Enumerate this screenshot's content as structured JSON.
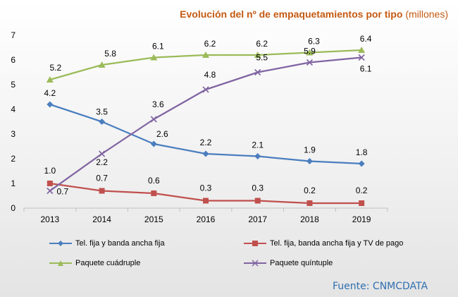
{
  "source_label": "Fuente: CNMCDATA",
  "chart_data": {
    "type": "line",
    "title": "Evolución del nº de empaquetamientos por tipo",
    "title_unit": "(millones)",
    "x": [
      "2013",
      "2014",
      "2015",
      "2016",
      "2017",
      "2018",
      "2019"
    ],
    "ylim": [
      0,
      7
    ],
    "yticks": [
      "0",
      "1",
      "2",
      "3",
      "4",
      "5",
      "6",
      "7"
    ],
    "grid": false,
    "legend_position": "bottom",
    "series": [
      {
        "name": "Tel. fija y banda ancha fija",
        "color": "#4a7ebf",
        "marker": "diamond",
        "values": [
          4.2,
          3.5,
          2.6,
          2.2,
          2.1,
          1.9,
          1.8
        ],
        "labels": [
          "4.2",
          "3.5",
          "2.6",
          "2.2",
          "2.1",
          "1.9",
          "1.8"
        ]
      },
      {
        "name": "Tel. fija, banda ancha fija y TV de pago",
        "color": "#c0504d",
        "marker": "square",
        "values": [
          1.0,
          0.7,
          0.6,
          0.3,
          0.3,
          0.2,
          0.2
        ],
        "labels": [
          "1.0",
          "0.7",
          "0.6",
          "0.3",
          "0.3",
          "0.2",
          "0.2"
        ]
      },
      {
        "name": "Paquete cuádruple",
        "color": "#9bbb59",
        "marker": "triangle",
        "values": [
          5.2,
          5.8,
          6.1,
          6.2,
          6.2,
          6.3,
          6.4
        ],
        "labels": [
          "5.2",
          "5.8",
          "6.1",
          "6.2",
          "6.2",
          "6.3",
          "6.4"
        ]
      },
      {
        "name": "Paquete quíntuple",
        "color": "#8064a2",
        "marker": "x",
        "values": [
          0.7,
          2.2,
          3.6,
          4.8,
          5.5,
          5.9,
          6.1
        ],
        "labels": [
          "0.7",
          "2.2",
          "3.6",
          "4.8",
          "5.5",
          "5.9",
          "6.1"
        ]
      }
    ]
  }
}
